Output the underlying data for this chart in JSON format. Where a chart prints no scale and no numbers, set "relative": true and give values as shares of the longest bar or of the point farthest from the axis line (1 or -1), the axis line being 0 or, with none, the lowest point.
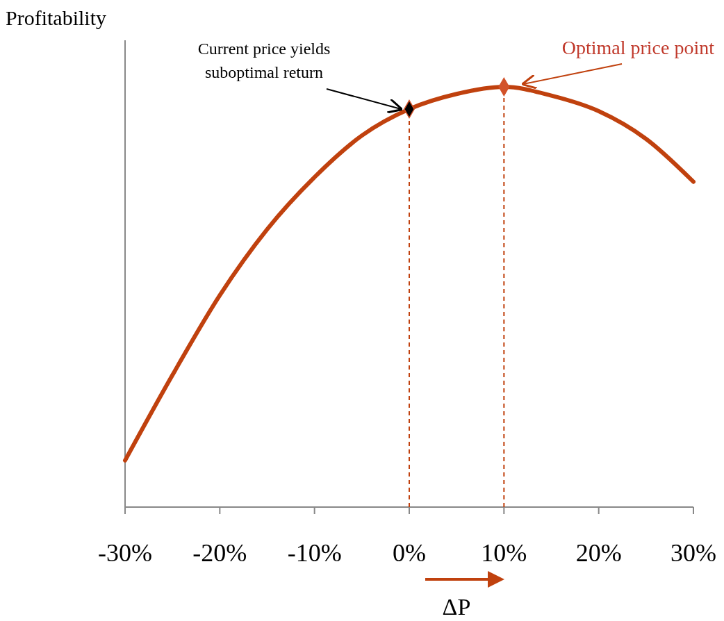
{
  "chart_data": {
    "type": "line",
    "ylabel": "Profitability",
    "xlabel": "ΔP",
    "relative": true,
    "xlim": [
      -30,
      30
    ],
    "xticks": [
      {
        "value": -30,
        "label": "-30%"
      },
      {
        "value": -20,
        "label": "-20%"
      },
      {
        "value": -10,
        "label": "-10%"
      },
      {
        "value": 0,
        "label": "0%"
      },
      {
        "value": 10,
        "label": "10%"
      },
      {
        "value": 20,
        "label": "20%"
      },
      {
        "value": 30,
        "label": "30%"
      }
    ],
    "series": [
      {
        "color": "#c0410e",
        "x": [
          -30,
          -25,
          -20,
          -15,
          -10,
          -5,
          0,
          5,
          10,
          15,
          20,
          25,
          30
        ],
        "values": [
          0.111,
          0.314,
          0.504,
          0.661,
          0.785,
          0.884,
          0.947,
          0.983,
          1,
          0.979,
          0.942,
          0.876,
          0.774
        ]
      },
      {
        "type": "scatter",
        "marker": "diamond",
        "color": "#000000",
        "x": [
          0
        ],
        "values": [
          0.947
        ]
      },
      {
        "type": "scatter",
        "marker": "diamond",
        "color": "#d2522a",
        "x": [
          10
        ],
        "values": [
          1
        ]
      }
    ],
    "ref_lines": [
      {
        "axis": "x",
        "value": 0,
        "color": "#c0410e",
        "line_style": "dashed"
      },
      {
        "axis": "x",
        "value": 10,
        "color": "#c0410e",
        "line_style": "dashed"
      }
    ],
    "annotations": [
      "Current price yields suboptimal return",
      "Optimal price point"
    ]
  }
}
